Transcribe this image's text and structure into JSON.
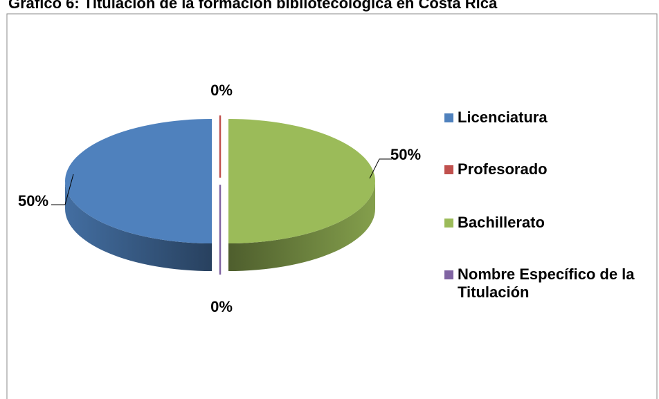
{
  "chart_data": {
    "type": "pie",
    "title": "Gráfico 6: Titulación de la formación bibliotecológica en Costa Rica",
    "categories": [
      "Licenciatura",
      "Profesorado",
      "Bachillerato",
      "Nombre Específico de la Titulación"
    ],
    "values": [
      50,
      0,
      50,
      0
    ],
    "value_labels": [
      "50%",
      "0%",
      "50%",
      "0%"
    ],
    "colors": [
      "#4f81bd",
      "#c0504d",
      "#9bbb59",
      "#8064a2"
    ],
    "legend": "right"
  }
}
